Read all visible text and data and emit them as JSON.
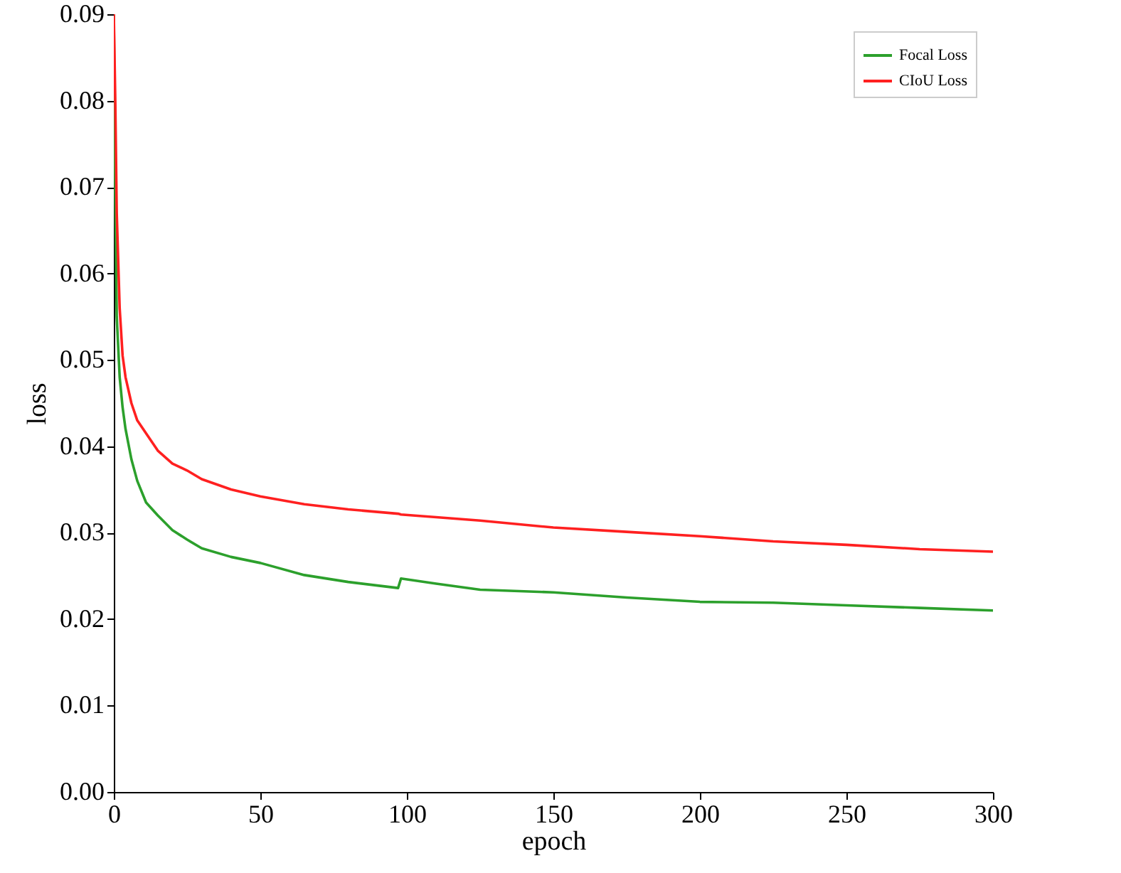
{
  "chart_data": {
    "type": "line",
    "xlabel": "epoch",
    "ylabel": "loss",
    "x": [
      0,
      0.5,
      1,
      2,
      3,
      4,
      6,
      8,
      11,
      15,
      20,
      25,
      30,
      40,
      50,
      65,
      80,
      97,
      98,
      110,
      125,
      150,
      175,
      200,
      225,
      250,
      275,
      300
    ],
    "series": [
      {
        "name": "Focal Loss",
        "color": "#2ca02c",
        "values": [
          0.09,
          0.07,
          0.055,
          0.048,
          0.0445,
          0.042,
          0.0385,
          0.036,
          0.0335,
          0.032,
          0.0303,
          0.0292,
          0.0282,
          0.0272,
          0.0265,
          0.0251,
          0.0243,
          0.0236,
          0.0247,
          0.0241,
          0.0234,
          0.0231,
          0.0225,
          0.022,
          0.0219,
          0.0216,
          0.0213,
          0.021
        ]
      },
      {
        "name": "CIoU Loss",
        "color": "#ff2020",
        "values": [
          0.09,
          0.08,
          0.067,
          0.056,
          0.0505,
          0.048,
          0.045,
          0.043,
          0.0415,
          0.0395,
          0.038,
          0.0372,
          0.0362,
          0.035,
          0.0342,
          0.0333,
          0.0327,
          0.0322,
          0.0321,
          0.0318,
          0.0314,
          0.0306,
          0.0301,
          0.0296,
          0.029,
          0.0286,
          0.0281,
          0.0278
        ]
      }
    ],
    "xlim": [
      0,
      300
    ],
    "xticks": [
      0,
      50,
      100,
      150,
      200,
      250,
      300
    ],
    "ylim": [
      0,
      0.09
    ],
    "yticks": [
      {
        "value": 0,
        "label": "0.00"
      },
      {
        "value": 0.01,
        "label": "0.01"
      },
      {
        "value": 0.02,
        "label": "0.02"
      },
      {
        "value": 0.03,
        "label": "0.03"
      },
      {
        "value": 0.04,
        "label": "0.04"
      },
      {
        "value": 0.05,
        "label": "0.05"
      },
      {
        "value": 0.06,
        "label": "0.06"
      },
      {
        "value": 0.07,
        "label": "0.07"
      },
      {
        "value": 0.08,
        "label": "0.08"
      },
      {
        "value": 0.09,
        "label": "0.09"
      }
    ],
    "grid": false,
    "legend": "top right",
    "marker": "none",
    "line_style": "solid"
  }
}
